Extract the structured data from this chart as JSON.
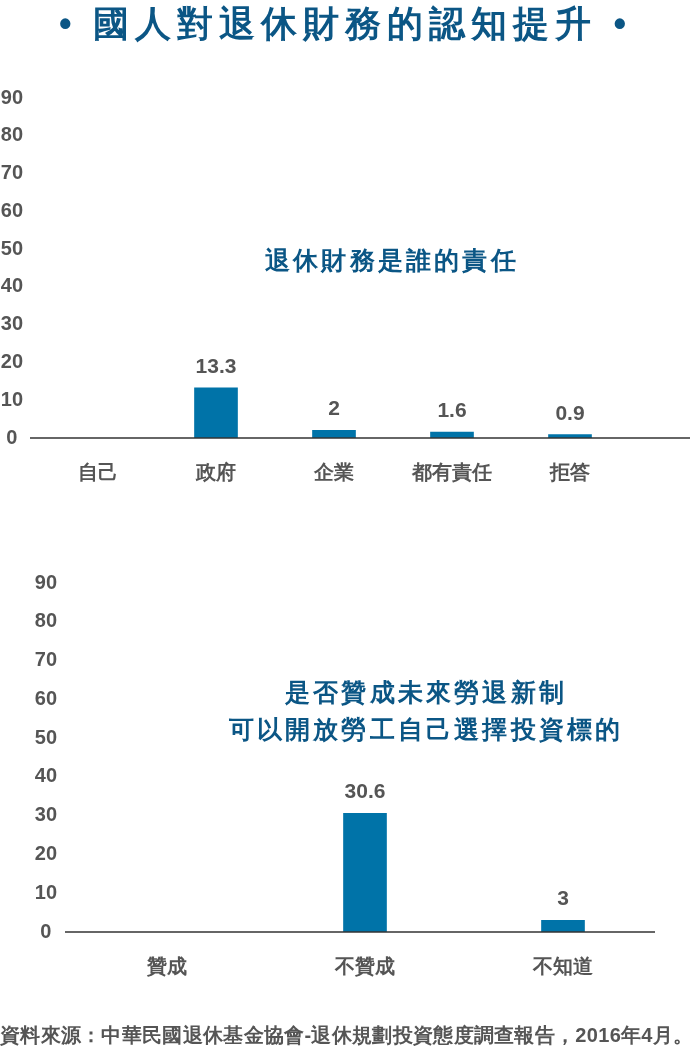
{
  "chart_data": [
    {
      "type": "bar",
      "title": "• 國人對退休財務的認知提升 •",
      "subtitle": "退休財務是誰的責任",
      "categories": [
        "自己",
        "政府",
        "企業",
        "都有責任",
        "拒答"
      ],
      "values": [
        null,
        13.3,
        2,
        1.6,
        0.9
      ],
      "color": "#0073a8",
      "ylim": [
        0,
        90
      ],
      "yticks": [
        0,
        10,
        20,
        30,
        40,
        50,
        60,
        70,
        80,
        90
      ],
      "data_labels": true
    },
    {
      "type": "bar",
      "title": "是否贊成未來勞退新制",
      "subtitle": "可以開放勞工自己選擇投資標的",
      "categories": [
        "贊成",
        "不贊成",
        "不知道"
      ],
      "values": [
        null,
        30.6,
        3
      ],
      "color": "#0073a8",
      "ylim": [
        0,
        90
      ],
      "yticks": [
        0,
        10,
        20,
        30,
        40,
        50,
        60,
        70,
        80,
        90
      ],
      "data_labels": true,
      "annotations": [
        "資料來源：中華民國退休基金協會-退休規劃投資態度調查報告，2016年4月。"
      ]
    }
  ]
}
